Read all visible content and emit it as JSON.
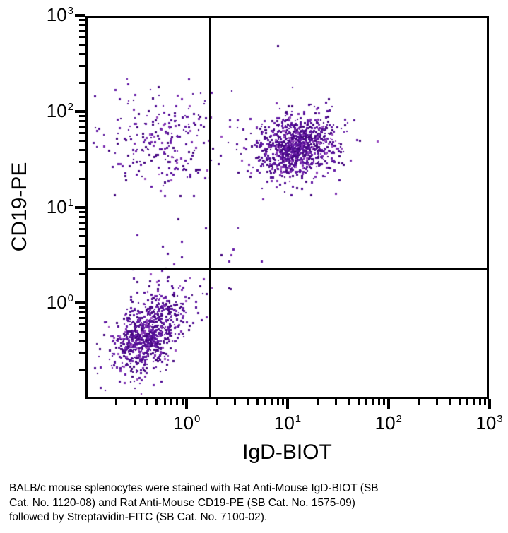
{
  "chart_data": {
    "type": "scatter",
    "style": "flow-cytometry-quadrant-dot-plot",
    "xlabel": "IgD-BIOT",
    "ylabel": "CD19-PE",
    "x_scale": "log10",
    "y_scale": "log10",
    "x_range": [
      0.1,
      1000
    ],
    "y_range": [
      0.1,
      1000
    ],
    "x_tick_exponents": [
      0,
      1,
      2,
      3
    ],
    "y_tick_exponents": [
      0,
      1,
      2,
      3
    ],
    "tick_base": "10",
    "grid": false,
    "legend": "none",
    "quadrant_gate": {
      "x": 1.7,
      "y": 2.3
    },
    "dot_size_px": 3,
    "dot_color_palette": [
      "#45087f",
      "#530f96",
      "#641ba6",
      "#7c2fb0",
      "#9a4ec0"
    ],
    "dot_color_weights": [
      0.3,
      0.3,
      0.2,
      0.12,
      0.08
    ],
    "seed": 7,
    "clusters": [
      {
        "name": "igd-neg-cd19-neg",
        "center_log10": [
          -0.38,
          -0.3
        ],
        "sd_log10": [
          0.17,
          0.22
        ],
        "corr": 0.45,
        "n": 850
      },
      {
        "name": "igd-pos-cd19-pos",
        "center_log10": [
          1.1,
          1.64
        ],
        "sd_log10": [
          0.2,
          0.165
        ],
        "corr": 0.1,
        "n": 1000
      },
      {
        "name": "igd-neg-cd19-pos",
        "center_log10": [
          -0.26,
          1.69
        ],
        "sd_log10": [
          0.31,
          0.29
        ],
        "corr": 0.0,
        "n": 260
      }
    ],
    "stray_points_log10": [
      [
        0.19,
        0.78
      ],
      [
        0.51,
        0.78
      ],
      [
        0.46,
        0.56
      ],
      [
        0.34,
        0.5
      ],
      [
        0.44,
        0.5
      ],
      [
        0.42,
        0.44
      ],
      [
        0.74,
        0.44
      ],
      [
        0.13,
        0.18
      ],
      [
        0.25,
        0.16
      ],
      [
        0.42,
        0.16
      ],
      [
        0.16,
        0.1
      ],
      [
        0.43,
        0.15
      ],
      [
        -0.49,
        0.71
      ],
      [
        -0.24,
        0.59
      ],
      [
        -0.05,
        0.64
      ],
      [
        -0.19,
        0.52
      ],
      [
        -0.05,
        0.48
      ],
      [
        -0.13,
        0.41
      ],
      [
        0.9,
        2.68
      ],
      [
        1.05,
        2.25
      ],
      [
        -0.89,
        1.8
      ]
    ],
    "axis_color": "#000000",
    "background_color": "#ffffff"
  },
  "caption": {
    "line1": "BALB/c mouse splenocytes were stained with Rat Anti-Mouse IgD-BIOT (SB",
    "line2": "Cat. No. 1120-08) and Rat Anti-Mouse CD19-PE (SB Cat. No. 1575-09)",
    "line3": "followed by Streptavidin-FITC (SB Cat. No. 7100-02)."
  }
}
